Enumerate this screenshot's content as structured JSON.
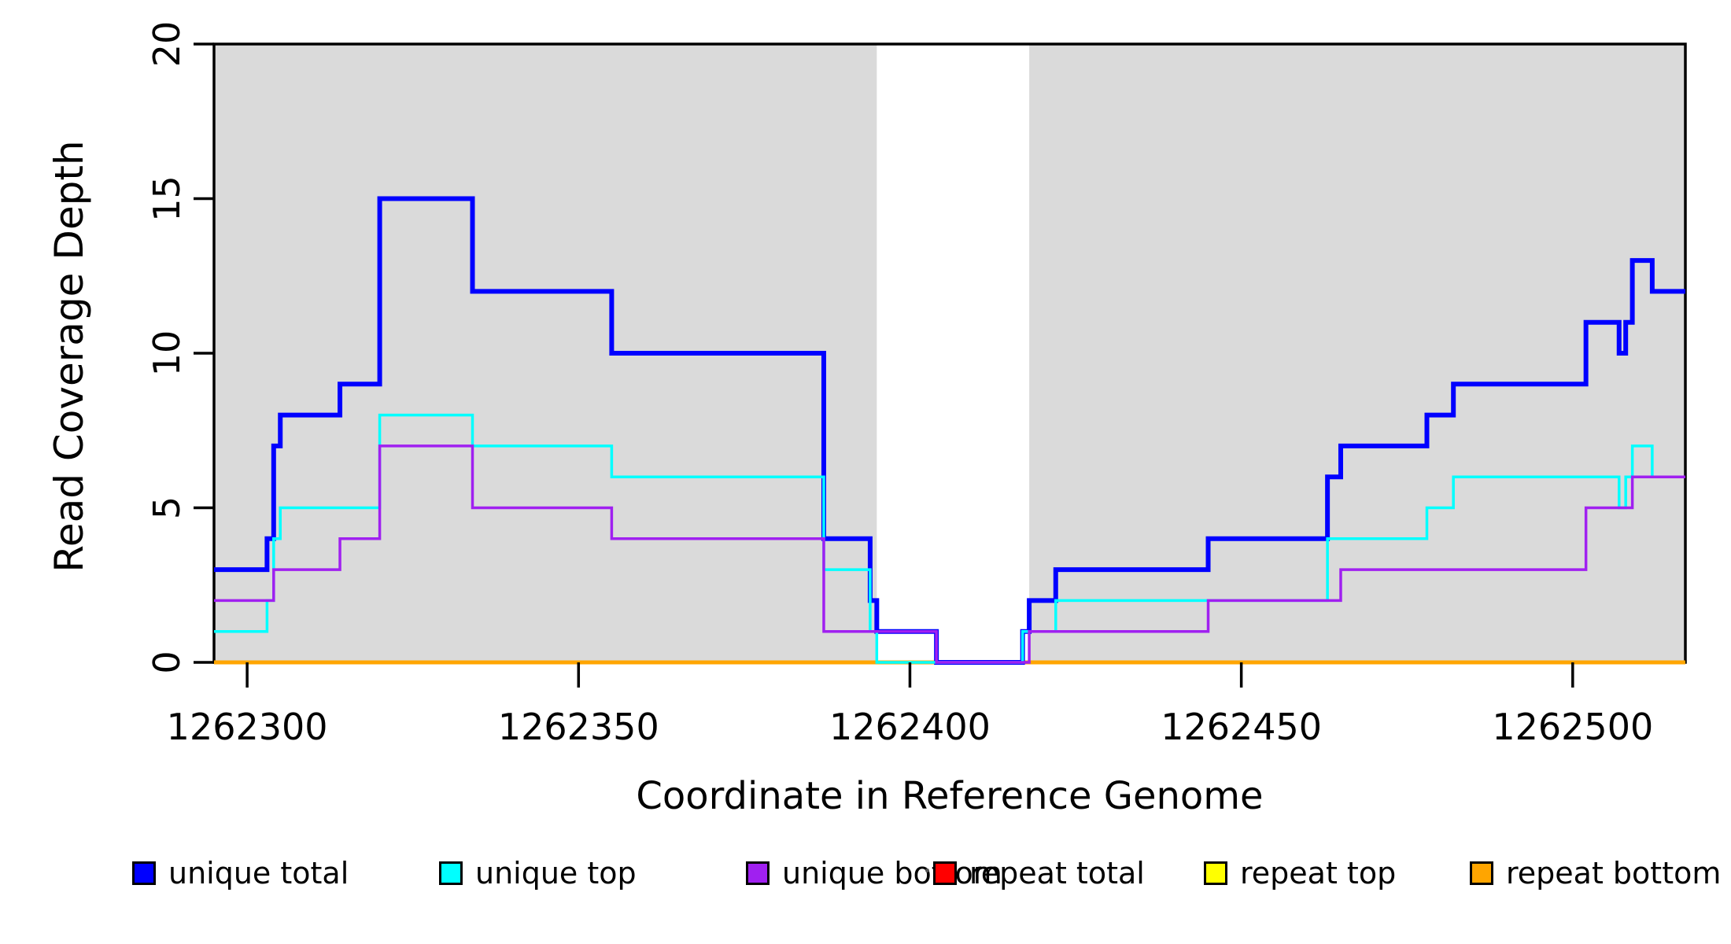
{
  "figure": {
    "background_color": "#FFFFFF",
    "band_color": "#DADADA",
    "axis_color": "#000000"
  },
  "chart_data": {
    "type": "line",
    "subtype": "step-after",
    "title": "",
    "xlabel": "Coordinate in Reference Genome",
    "ylabel": "Read Coverage Depth",
    "xlim": [
      1262295,
      1262517
    ],
    "ylim": [
      0,
      20
    ],
    "grid": false,
    "x_ticks": [
      1262300,
      1262350,
      1262400,
      1262450,
      1262500
    ],
    "x_tick_labels": [
      "1262300",
      "1262350",
      "1262400",
      "1262450",
      "1262500"
    ],
    "y_ticks": [
      0,
      5,
      10,
      15,
      20
    ],
    "y_tick_labels": [
      "0",
      "5",
      "10",
      "15",
      "20"
    ],
    "shaded_regions": [
      {
        "x0": 1262295,
        "x1": 1262395
      },
      {
        "x0": 1262418,
        "x1": 1262517
      }
    ],
    "draw_order": [
      "repeat total",
      "repeat top",
      "repeat bottom",
      "unique total",
      "unique top",
      "unique bottom"
    ],
    "series": [
      {
        "name": "unique total",
        "color": "#0000FF",
        "line_width": 6,
        "points": [
          [
            1262295,
            3
          ],
          [
            1262303,
            4
          ],
          [
            1262304,
            7
          ],
          [
            1262305,
            8
          ],
          [
            1262314,
            9
          ],
          [
            1262320,
            15
          ],
          [
            1262334,
            12
          ],
          [
            1262355,
            10
          ],
          [
            1262387,
            4
          ],
          [
            1262394,
            2
          ],
          [
            1262395,
            1
          ],
          [
            1262404,
            0
          ],
          [
            1262417,
            1
          ],
          [
            1262418,
            2
          ],
          [
            1262422,
            3
          ],
          [
            1262445,
            4
          ],
          [
            1262463,
            6
          ],
          [
            1262465,
            7
          ],
          [
            1262478,
            8
          ],
          [
            1262482,
            9
          ],
          [
            1262502,
            11
          ],
          [
            1262507,
            10
          ],
          [
            1262508,
            11
          ],
          [
            1262509,
            13
          ],
          [
            1262512,
            12
          ],
          [
            1262517,
            12
          ]
        ]
      },
      {
        "name": "unique top",
        "color": "#00FFFF",
        "line_width": 3.5,
        "points": [
          [
            1262295,
            1
          ],
          [
            1262303,
            2
          ],
          [
            1262304,
            4
          ],
          [
            1262305,
            5
          ],
          [
            1262320,
            8
          ],
          [
            1262334,
            7
          ],
          [
            1262355,
            6
          ],
          [
            1262387,
            3
          ],
          [
            1262394,
            1
          ],
          [
            1262395,
            0
          ],
          [
            1262417,
            1
          ],
          [
            1262422,
            2
          ],
          [
            1262463,
            4
          ],
          [
            1262478,
            5
          ],
          [
            1262482,
            6
          ],
          [
            1262507,
            5
          ],
          [
            1262508,
            6
          ],
          [
            1262509,
            7
          ],
          [
            1262512,
            6
          ],
          [
            1262517,
            6
          ]
        ]
      },
      {
        "name": "unique bottom",
        "color": "#A020F0",
        "line_width": 3.5,
        "points": [
          [
            1262295,
            2
          ],
          [
            1262304,
            3
          ],
          [
            1262314,
            4
          ],
          [
            1262320,
            7
          ],
          [
            1262334,
            5
          ],
          [
            1262355,
            4
          ],
          [
            1262387,
            1
          ],
          [
            1262404,
            0
          ],
          [
            1262418,
            1
          ],
          [
            1262445,
            2
          ],
          [
            1262465,
            3
          ],
          [
            1262502,
            5
          ],
          [
            1262509,
            6
          ],
          [
            1262517,
            6
          ]
        ]
      },
      {
        "name": "repeat total",
        "color": "#FF0000",
        "line_width": 5,
        "points": [
          [
            1262295,
            0
          ],
          [
            1262517,
            0
          ]
        ]
      },
      {
        "name": "repeat top",
        "color": "#FFFF00",
        "line_width": 5,
        "points": [
          [
            1262295,
            0
          ],
          [
            1262517,
            0
          ]
        ]
      },
      {
        "name": "repeat bottom",
        "color": "#FFA500",
        "line_width": 5,
        "points": [
          [
            1262295,
            0
          ],
          [
            1262517,
            0
          ]
        ]
      }
    ],
    "legend": {
      "position": "bottom",
      "items": [
        {
          "label": "unique total",
          "color": "#0000FF"
        },
        {
          "label": "unique top",
          "color": "#00FFFF"
        },
        {
          "label": "unique bottom",
          "color": "#A020F0"
        },
        {
          "label": "repeat total",
          "color": "#FF0000"
        },
        {
          "label": "repeat top",
          "color": "#FFFF00"
        },
        {
          "label": "repeat bottom",
          "color": "#FFA500"
        }
      ]
    }
  }
}
